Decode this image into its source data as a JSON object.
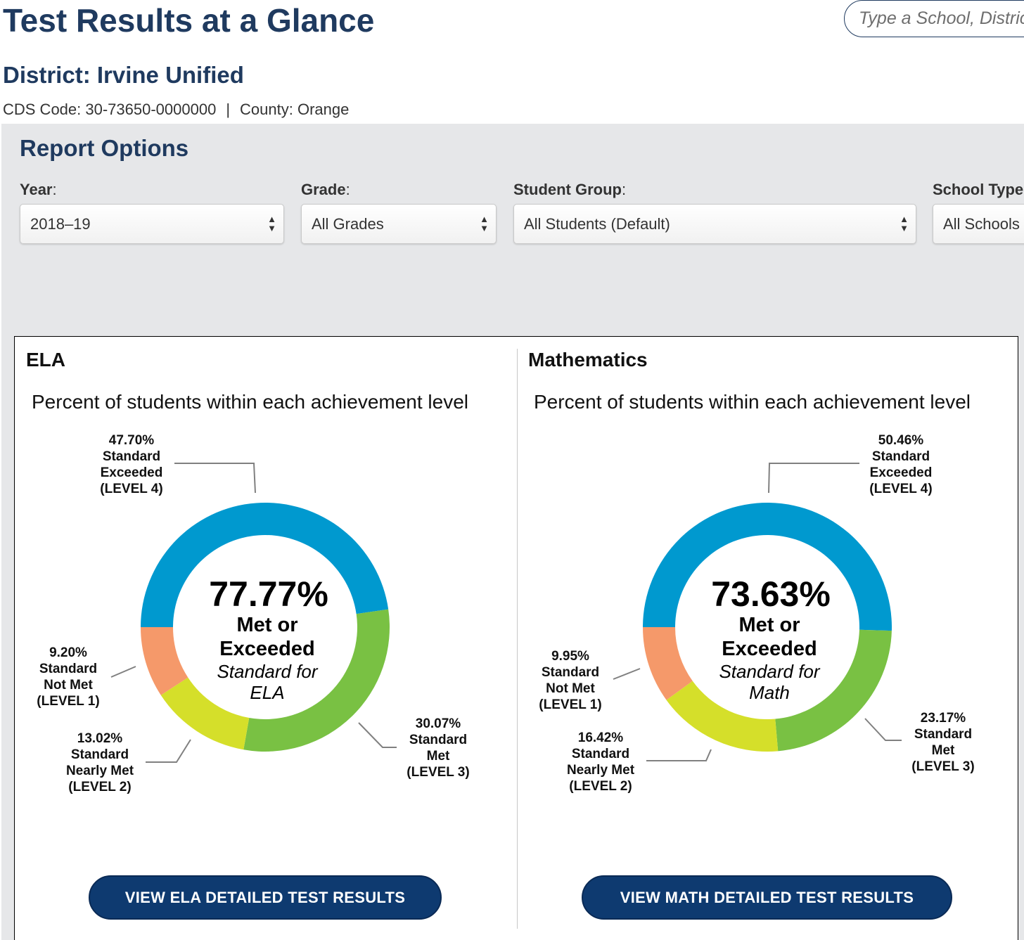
{
  "header": {
    "title": "Test Results at a Glance",
    "search_placeholder": "Type a School, District, or County"
  },
  "district": {
    "title": "District: Irvine Unified",
    "cds_code": "CDS Code: 30-73650-0000000",
    "separator": "|",
    "county": "County: Orange"
  },
  "report_options": {
    "title": "Report Options",
    "year": {
      "label": "Year",
      "value": "2018–19"
    },
    "grade": {
      "label": "Grade",
      "value": "All Grades"
    },
    "student_group": {
      "label": "Student Group",
      "value": "All Students (Default)"
    },
    "school_type": {
      "label": "School Type",
      "value": "All Schools"
    }
  },
  "colors": {
    "level4": "#0099cf",
    "level3": "#79c143",
    "level2": "#d5df2a",
    "level1": "#f5996a",
    "brand": "#1f3a5f",
    "button": "#0e3a70"
  },
  "chart_data": [
    {
      "type": "pie",
      "title": "ELA",
      "subtitle": "Percent of students within each achievement level",
      "center_value": "77.77%",
      "center_line1": "Met or",
      "center_line2": "Exceeded",
      "center_line3": "Standard for",
      "center_line4": "ELA",
      "slices": [
        {
          "value": 47.7,
          "pct": "47.70%",
          "l1": "Standard",
          "l2": "Exceeded",
          "l3": "(LEVEL 4)"
        },
        {
          "value": 30.07,
          "pct": "30.07%",
          "l1": "Standard",
          "l2": "Met",
          "l3": "(LEVEL 3)"
        },
        {
          "value": 13.02,
          "pct": "13.02%",
          "l1": "Standard",
          "l2": "Nearly Met",
          "l3": "(LEVEL 2)"
        },
        {
          "value": 9.2,
          "pct": "9.20%",
          "l1": "Standard",
          "l2": "Not Met",
          "l3": "(LEVEL 1)"
        }
      ],
      "button_label": "VIEW ELA DETAILED TEST RESULTS"
    },
    {
      "type": "pie",
      "title": "Mathematics",
      "subtitle": "Percent of students within each achievement level",
      "center_value": "73.63%",
      "center_line1": "Met or",
      "center_line2": "Exceeded",
      "center_line3": "Standard for",
      "center_line4": "Math",
      "slices": [
        {
          "value": 50.46,
          "pct": "50.46%",
          "l1": "Standard",
          "l2": "Exceeded",
          "l3": "(LEVEL 4)"
        },
        {
          "value": 23.17,
          "pct": "23.17%",
          "l1": "Standard",
          "l2": "Met",
          "l3": "(LEVEL 3)"
        },
        {
          "value": 16.42,
          "pct": "16.42%",
          "l1": "Standard",
          "l2": "Nearly Met",
          "l3": "(LEVEL 2)"
        },
        {
          "value": 9.95,
          "pct": "9.95%",
          "l1": "Standard",
          "l2": "Not Met",
          "l3": "(LEVEL 1)"
        }
      ],
      "button_label": "VIEW MATH DETAILED TEST RESULTS"
    }
  ]
}
